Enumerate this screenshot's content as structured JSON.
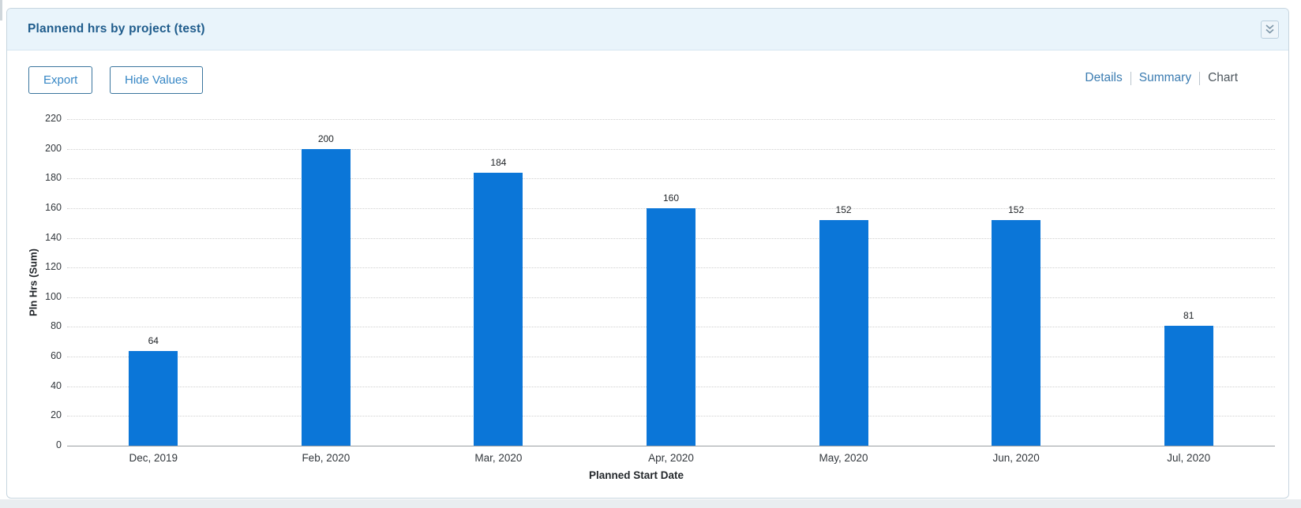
{
  "panel": {
    "title": "Plannend hrs by project (test)",
    "collapse_icon": "double-chevron-down"
  },
  "toolbar": {
    "export_label": "Export",
    "hide_values_label": "Hide Values",
    "view_links": [
      {
        "label": "Details",
        "active": false
      },
      {
        "label": "Summary",
        "active": false
      },
      {
        "label": "Chart",
        "active": true
      }
    ]
  },
  "chart_data": {
    "type": "bar",
    "title": "",
    "categories": [
      "Dec, 2019",
      "Feb, 2020",
      "Mar, 2020",
      "Apr, 2020",
      "May, 2020",
      "Jun, 2020",
      "Jul, 2020"
    ],
    "values": [
      64,
      200,
      184,
      160,
      152,
      152,
      81
    ],
    "xlabel": "Planned Start Date",
    "ylabel": "Pln Hrs (Sum)",
    "ylim": [
      0,
      220
    ],
    "ytick_step": 20,
    "grid": "horizontal-dotted",
    "legend": "none",
    "bar_color": "#0b76d8"
  },
  "colors": {
    "bar": "#0b76d8",
    "header_background": "#e9f4fb",
    "panel_title": "#1f5c8c",
    "link_blue": "#3b7cb1",
    "link_inactive": "#4e575e",
    "button_text": "#3787c5",
    "button_border": "#3a759e"
  }
}
